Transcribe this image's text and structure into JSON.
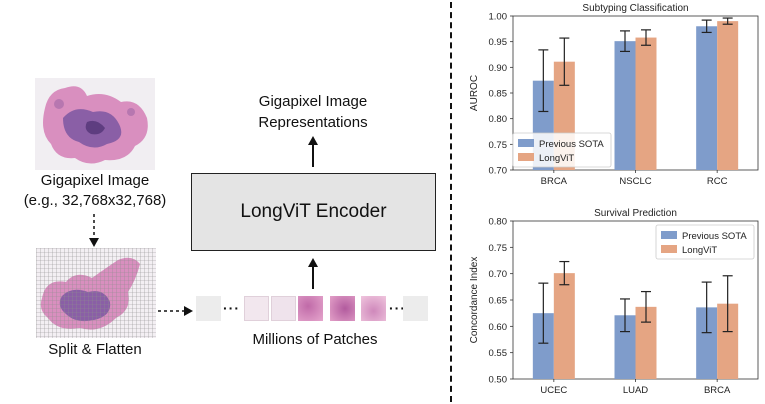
{
  "left_diagram": {
    "gigapixel_label_line1": "Gigapixel Image",
    "gigapixel_label_line2": "(e.g., 32,768x32,768)",
    "split_flatten_label": "Split & Flatten",
    "patches_label": "Millions of Patches",
    "encoder_label": "LongViT Encoder",
    "representations_line1": "Gigapixel Image",
    "representations_line2": "Representations",
    "ellipsis": "···"
  },
  "colors": {
    "previous_sota": "#7f9ccb",
    "longvit": "#e5a583",
    "encoder_fill": "#e4e4e4",
    "tissue_pink": "#d98fbf",
    "tissue_purple": "#8a5fa6"
  },
  "chart_data": [
    {
      "type": "bar",
      "title": "Subtyping Classification",
      "ylabel": "AUROC",
      "xlabel": "",
      "categories": [
        "BRCA",
        "NSCLC",
        "RCC"
      ],
      "ylim": [
        0.7,
        1.0
      ],
      "yticks": [
        "0.70",
        "0.75",
        "0.80",
        "0.85",
        "0.90",
        "0.95",
        "1.00"
      ],
      "legend_position": "lower-left",
      "series": [
        {
          "name": "Previous SOTA",
          "values": [
            0.874,
            0.951,
            0.98
          ],
          "err": [
            0.06,
            0.02,
            0.012
          ]
        },
        {
          "name": "LongViT",
          "values": [
            0.911,
            0.958,
            0.99
          ],
          "err": [
            0.046,
            0.015,
            0.006
          ]
        }
      ]
    },
    {
      "type": "bar",
      "title": "Survival Prediction",
      "ylabel": "Concordance Index",
      "xlabel": "",
      "categories": [
        "UCEC",
        "LUAD",
        "BRCA"
      ],
      "ylim": [
        0.5,
        0.8
      ],
      "yticks": [
        "0.50",
        "0.55",
        "0.60",
        "0.65",
        "0.70",
        "0.75",
        "0.80"
      ],
      "legend_position": "top-right",
      "series": [
        {
          "name": "Previous SOTA",
          "values": [
            0.625,
            0.621,
            0.636
          ],
          "err": [
            0.057,
            0.031,
            0.048
          ]
        },
        {
          "name": "LongViT",
          "values": [
            0.701,
            0.637,
            0.643
          ],
          "err": [
            0.022,
            0.029,
            0.053
          ]
        }
      ]
    }
  ]
}
